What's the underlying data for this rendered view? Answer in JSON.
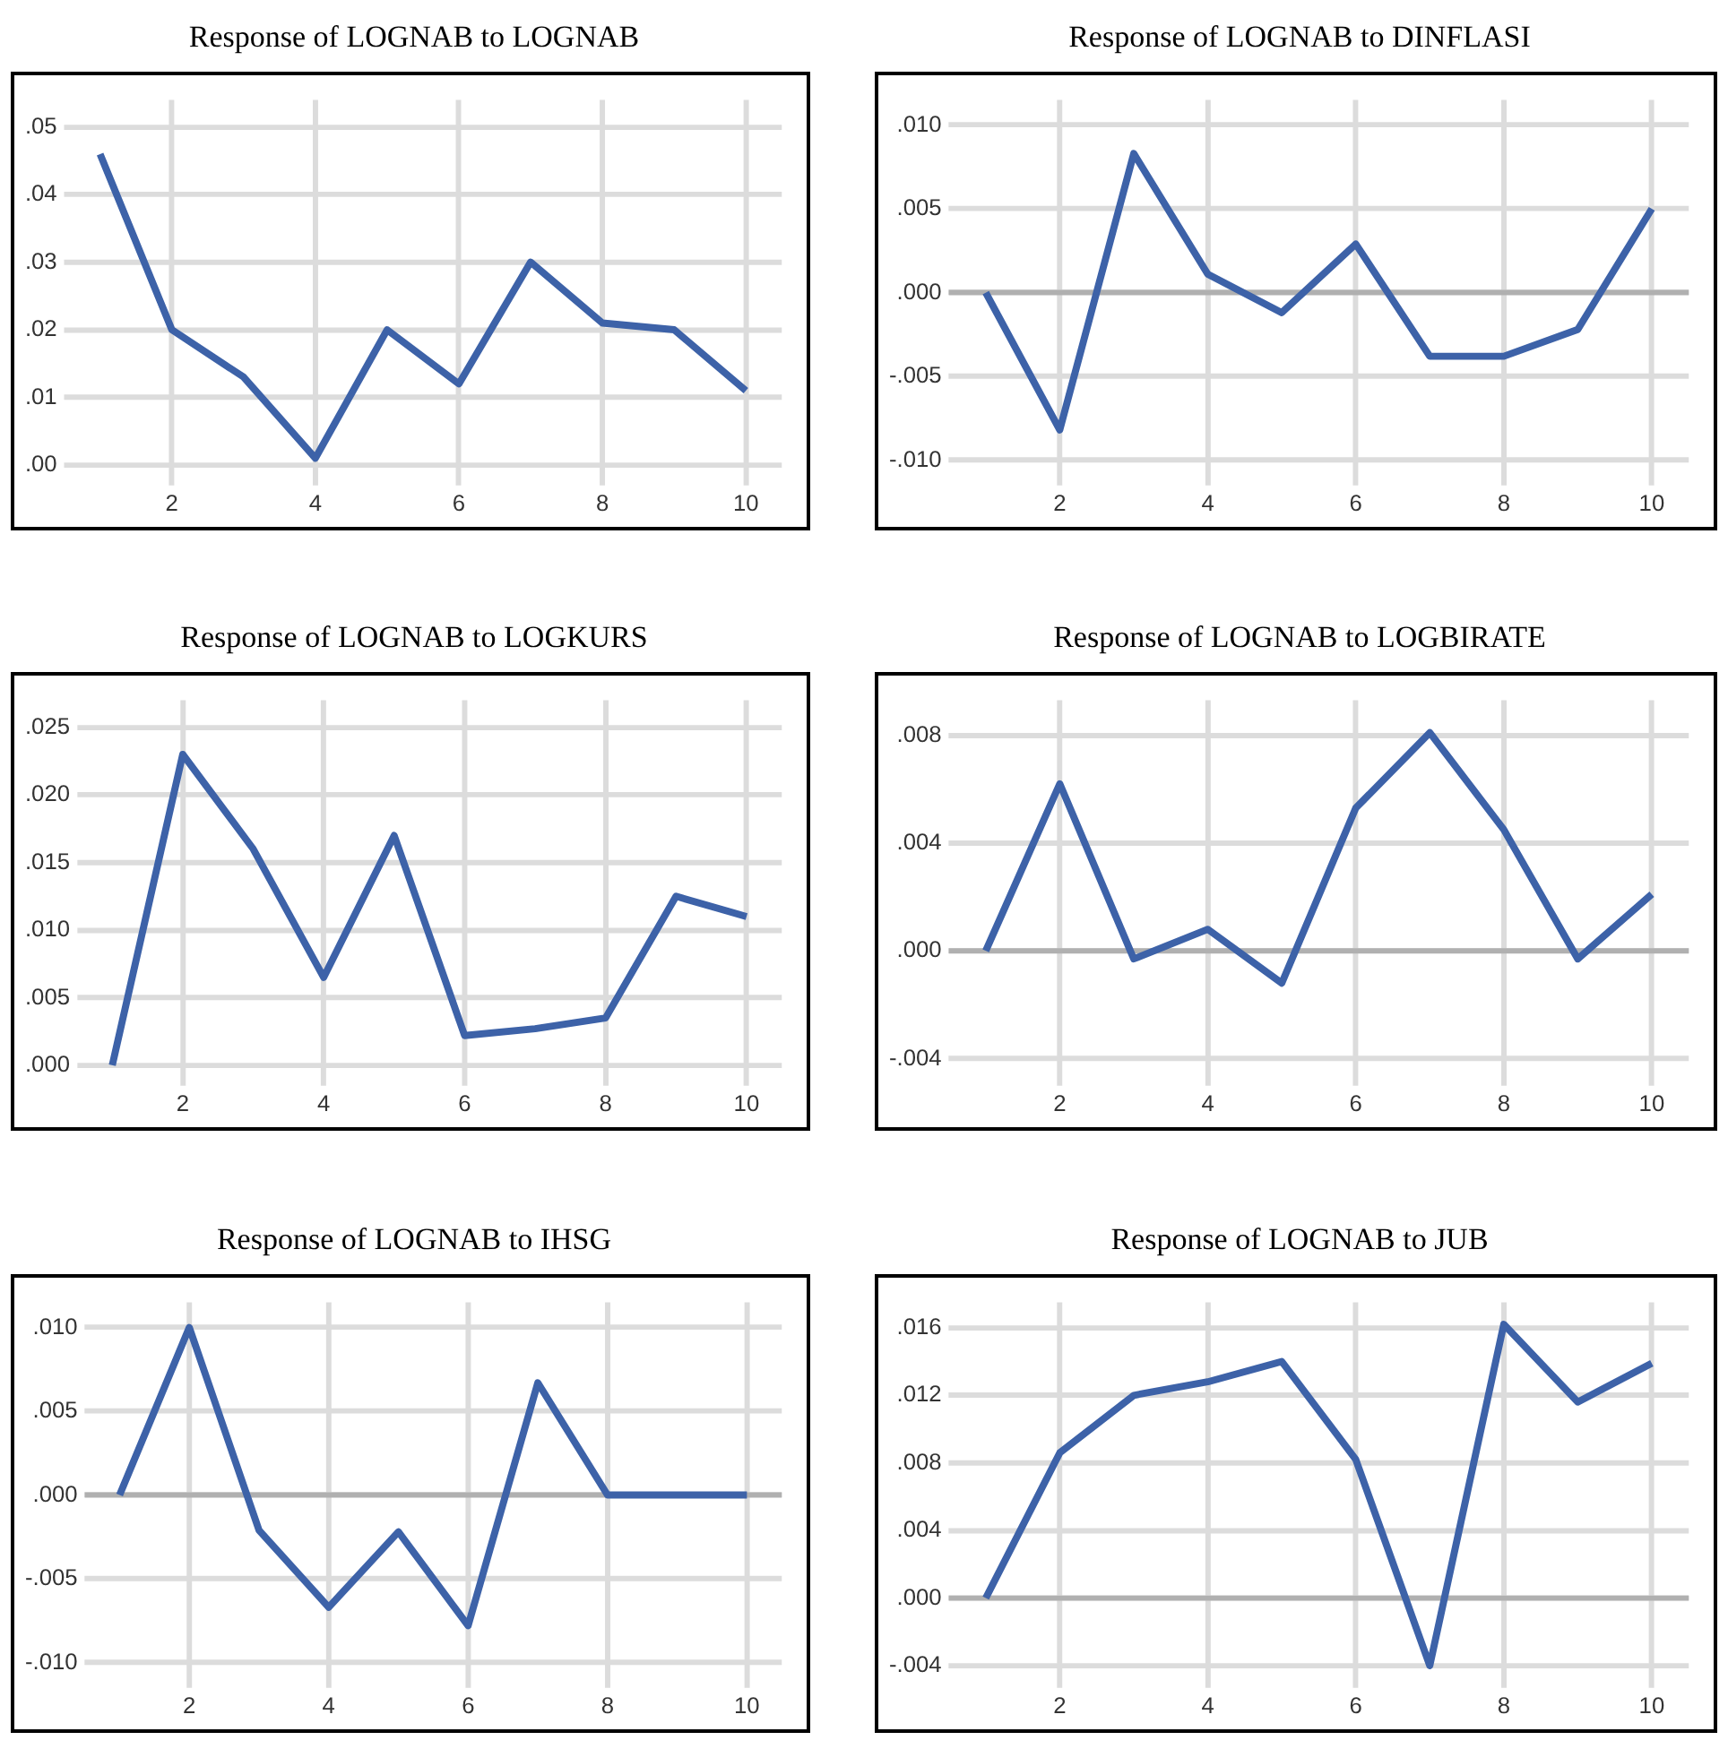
{
  "chart_data": [
    {
      "type": "line",
      "title": "Response of LOGNAB to LOGNAB",
      "x": [
        1,
        2,
        3,
        4,
        5,
        6,
        7,
        8,
        9,
        10
      ],
      "values": [
        0.046,
        0.02,
        0.013,
        0.001,
        0.02,
        0.012,
        0.03,
        0.021,
        0.02,
        0.011
      ],
      "color": "#3d62a8",
      "xlim": [
        0.5,
        10.5
      ],
      "xticks": [
        2,
        4,
        6,
        8,
        10
      ],
      "ylim": [
        -0.003,
        0.054
      ],
      "yticks": [
        {
          "value": 0,
          "label": ".00"
        },
        {
          "value": 0.01,
          "label": ".01"
        },
        {
          "value": 0.02,
          "label": ".02"
        },
        {
          "value": 0.03,
          "label": ".03"
        },
        {
          "value": 0.04,
          "label": ".04"
        },
        {
          "value": 0.05,
          "label": ".05"
        }
      ],
      "grid": true,
      "marker": "none"
    },
    {
      "type": "line",
      "title": "Response of LOGNAB to DINFLASI",
      "x": [
        1,
        2,
        3,
        4,
        5,
        6,
        7,
        8,
        9,
        10
      ],
      "values": [
        0,
        -0.0082,
        0.0083,
        0.0011,
        -0.0012,
        0.0029,
        -0.0038,
        -0.0038,
        -0.0022,
        0.005
      ],
      "color": "#3d62a8",
      "xlim": [
        0.5,
        10.5
      ],
      "xticks": [
        2,
        4,
        6,
        8,
        10
      ],
      "ylim": [
        -0.0115,
        0.0115
      ],
      "yticks": [
        {
          "value": -0.01,
          "label": "-.010"
        },
        {
          "value": -0.005,
          "label": "-.005"
        },
        {
          "value": 0,
          "label": ".000"
        },
        {
          "value": 0.005,
          "label": ".005"
        },
        {
          "value": 0.01,
          "label": ".010"
        }
      ],
      "grid": true,
      "marker": "none",
      "ref_lines": [
        {
          "axis": "y",
          "value": 0,
          "color": "#b0b0b0"
        }
      ]
    },
    {
      "type": "line",
      "title": "Response  of LOGNAB to LOGKURS",
      "x": [
        1,
        2,
        3,
        4,
        5,
        6,
        7,
        8,
        9,
        10
      ],
      "values": [
        0,
        0.023,
        0.016,
        0.0065,
        0.017,
        0.0022,
        0.0027,
        0.0035,
        0.0125,
        0.011
      ],
      "color": "#3d62a8",
      "xlim": [
        0.5,
        10.5
      ],
      "xticks": [
        2,
        4,
        6,
        8,
        10
      ],
      "ylim": [
        -0.0015,
        0.027
      ],
      "yticks": [
        {
          "value": 0,
          "label": ".000"
        },
        {
          "value": 0.005,
          "label": ".005"
        },
        {
          "value": 0.01,
          "label": ".010"
        },
        {
          "value": 0.015,
          "label": ".015"
        },
        {
          "value": 0.02,
          "label": ".020"
        },
        {
          "value": 0.025,
          "label": ".025"
        }
      ],
      "grid": true,
      "marker": "none"
    },
    {
      "type": "line",
      "title": "Response  of LOGNAB to LOGBIRATE",
      "x": [
        1,
        2,
        3,
        4,
        5,
        6,
        7,
        8,
        9,
        10
      ],
      "values": [
        0,
        0.0062,
        -0.0003,
        0.0008,
        -0.0012,
        0.0053,
        0.0081,
        0.0045,
        -0.0003,
        0.0021
      ],
      "color": "#3d62a8",
      "xlim": [
        0.5,
        10.5
      ],
      "xticks": [
        2,
        4,
        6,
        8,
        10
      ],
      "ylim": [
        -0.005,
        0.0093
      ],
      "yticks": [
        {
          "value": -0.004,
          "label": "-.004"
        },
        {
          "value": 0,
          "label": ".000"
        },
        {
          "value": 0.004,
          "label": ".004"
        },
        {
          "value": 0.008,
          "label": ".008"
        }
      ],
      "grid": true,
      "marker": "none",
      "ref_lines": [
        {
          "axis": "y",
          "value": 0,
          "color": "#b0b0b0"
        }
      ]
    },
    {
      "type": "line",
      "title": "Response of LOGNAB to IHSG",
      "x": [
        1,
        2,
        3,
        4,
        5,
        6,
        7,
        8,
        9,
        10
      ],
      "values": [
        0,
        0.01,
        -0.0021,
        -0.0067,
        -0.0022,
        -0.0078,
        0.0067,
        0,
        0,
        0
      ],
      "color": "#3d62a8",
      "xlim": [
        0.5,
        10.5
      ],
      "xticks": [
        2,
        4,
        6,
        8,
        10
      ],
      "ylim": [
        -0.0115,
        0.0115
      ],
      "yticks": [
        {
          "value": -0.01,
          "label": "-.010"
        },
        {
          "value": -0.005,
          "label": "-.005"
        },
        {
          "value": 0,
          "label": ".000"
        },
        {
          "value": 0.005,
          "label": ".005"
        },
        {
          "value": 0.01,
          "label": ".010"
        }
      ],
      "grid": true,
      "marker": "none",
      "ref_lines": [
        {
          "axis": "y",
          "value": 0,
          "color": "#b0b0b0"
        }
      ]
    },
    {
      "type": "line",
      "title": "Response  of LOGNAB to JUB",
      "x": [
        1,
        2,
        3,
        4,
        5,
        6,
        7,
        8,
        9,
        10
      ],
      "values": [
        0,
        0.0086,
        0.012,
        0.0128,
        0.014,
        0.0082,
        -0.004,
        0.0162,
        0.0116,
        0.0139
      ],
      "color": "#3d62a8",
      "xlim": [
        0.5,
        10.5
      ],
      "xticks": [
        2,
        4,
        6,
        8,
        10
      ],
      "ylim": [
        -0.0053,
        0.0175
      ],
      "yticks": [
        {
          "value": -0.004,
          "label": "-.004"
        },
        {
          "value": 0,
          "label": ".000"
        },
        {
          "value": 0.004,
          "label": ".004"
        },
        {
          "value": 0.008,
          "label": ".008"
        },
        {
          "value": 0.012,
          "label": ".012"
        },
        {
          "value": 0.016,
          "label": ".016"
        }
      ],
      "grid": true,
      "marker": "none",
      "ref_lines": [
        {
          "axis": "y",
          "value": 0,
          "color": "#b0b0b0"
        }
      ]
    }
  ]
}
